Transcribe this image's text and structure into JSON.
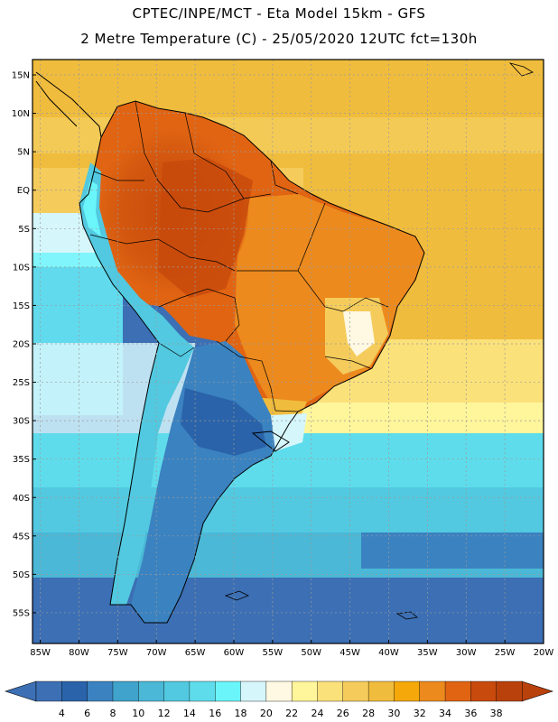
{
  "header": {
    "line1": "CPTEC/INPE/MCT -  Eta Model 15km - GFS",
    "line2": "2 Metre Temperature (C) - 25/05/2020 12UTC fct=130h"
  },
  "map": {
    "lat_labels": [
      "15N",
      "10N",
      "5N",
      "EQ",
      "5S",
      "10S",
      "15S",
      "20S",
      "25S",
      "30S",
      "35S",
      "40S",
      "45S",
      "50S",
      "55S"
    ],
    "lon_labels": [
      "85W",
      "80W",
      "75W",
      "70W",
      "65W",
      "60W",
      "55W",
      "50W",
      "45W",
      "40W",
      "35W",
      "30W",
      "25W",
      "20W"
    ],
    "colors": {
      "frame": "#000000",
      "grid": "#9a9a9a",
      "coast": "#000000"
    }
  },
  "colorbar": {
    "labels": [
      "4",
      "6",
      "8",
      "10",
      "12",
      "14",
      "16",
      "18",
      "20",
      "22",
      "24",
      "26",
      "28",
      "30",
      "32",
      "34",
      "36",
      "38"
    ],
    "colors": [
      "#3c6fb4",
      "#2a63a9",
      "#3b82c0",
      "#3fa3cb",
      "#4ab8d6",
      "#52c9e0",
      "#5fdceb",
      "#6af5fb",
      "#d5f6fb",
      "#fff8e2",
      "#fff59b",
      "#fbe17a",
      "#f5cc5b",
      "#f0bc3d",
      "#f4a80a",
      "#ec8a1e",
      "#e06412",
      "#c84a0c",
      "#b9410c"
    ],
    "left_arrow_color": "#3c6fb4",
    "right_arrow_color": "#b9410c"
  }
}
